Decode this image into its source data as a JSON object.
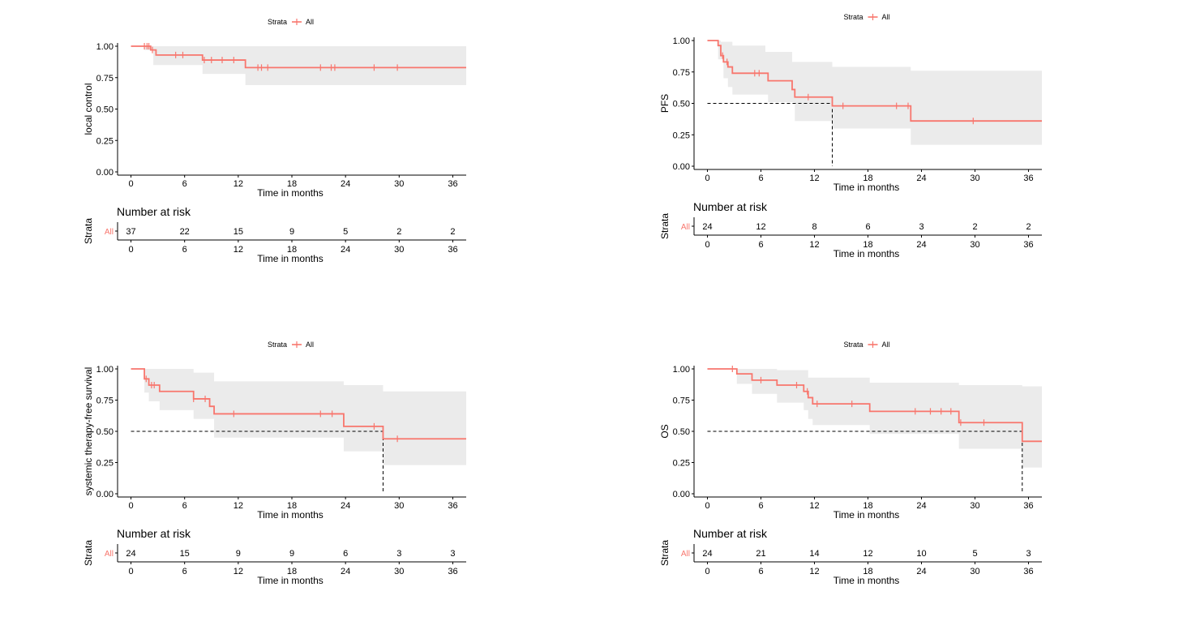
{
  "chart_data": [
    {
      "type": "line",
      "legend": {
        "title": "Strata",
        "entries": [
          "All"
        ],
        "placement": "top-center"
      },
      "ylabel": "local control",
      "xlabel": "Time in months",
      "xticks": [
        0,
        6,
        12,
        18,
        24,
        30,
        36
      ],
      "yticks": [
        "0.00",
        "0.25",
        "0.50",
        "0.75",
        "1.00"
      ],
      "xlim": [
        -1.5,
        37.5
      ],
      "ylim": [
        0,
        1
      ],
      "median": null,
      "series": [
        {
          "name": "All",
          "color": "#F8766D",
          "steps": [
            [
              0,
              1
            ],
            [
              2.2,
              0.97
            ],
            [
              2.8,
              0.93
            ],
            [
              8,
              0.89
            ],
            [
              12.8,
              0.83
            ],
            [
              37.5,
              0.83
            ]
          ],
          "ci_upper": [
            [
              0,
              1
            ],
            [
              2.2,
              1
            ],
            [
              37.5,
              1
            ]
          ],
          "ci_lower": [
            [
              0,
              1
            ],
            [
              1.5,
              0.97
            ],
            [
              2.5,
              0.85
            ],
            [
              8,
              0.78
            ],
            [
              12.8,
              0.69
            ],
            [
              37.5,
              0.69
            ]
          ],
          "censor_times": [
            1.5,
            1.8,
            2.0,
            2.4,
            5.0,
            5.8,
            8.2,
            9.0,
            10.2,
            11.5,
            14.2,
            14.6,
            15.3,
            21.2,
            22.4,
            22.8,
            27.2,
            29.8
          ]
        }
      ],
      "risk_table": {
        "title": "Number at risk",
        "ylabel": "Strata",
        "row_label": "All",
        "times": [
          0,
          6,
          12,
          18,
          24,
          30,
          36
        ],
        "values": [
          37,
          22,
          15,
          9,
          5,
          2,
          2
        ],
        "xlabel": "Time in months"
      }
    },
    {
      "type": "line",
      "legend": {
        "title": "Strata",
        "entries": [
          "All"
        ],
        "placement": "top-center"
      },
      "ylabel": "PFS",
      "xlabel": "Time in months",
      "xticks": [
        0,
        6,
        12,
        18,
        24,
        30,
        36
      ],
      "yticks": [
        "0.00",
        "0.25",
        "0.50",
        "0.75",
        "1.00"
      ],
      "xlim": [
        -1.5,
        37.5
      ],
      "ylim": [
        0,
        1
      ],
      "median": 14,
      "series": [
        {
          "name": "All",
          "color": "#F8766D",
          "steps": [
            [
              0,
              1
            ],
            [
              1.2,
              0.96
            ],
            [
              1.5,
              0.88
            ],
            [
              1.8,
              0.83
            ],
            [
              2.3,
              0.79
            ],
            [
              2.8,
              0.74
            ],
            [
              6.8,
              0.68
            ],
            [
              9.5,
              0.61
            ],
            [
              9.8,
              0.55
            ],
            [
              14,
              0.48
            ],
            [
              22.8,
              0.36
            ],
            [
              37.5,
              0.36
            ]
          ],
          "ci_upper": [
            [
              0,
              1
            ],
            [
              1.5,
              0.99
            ],
            [
              2.8,
              0.96
            ],
            [
              6.5,
              0.91
            ],
            [
              9.5,
              0.83
            ],
            [
              14,
              0.79
            ],
            [
              22.8,
              0.76
            ],
            [
              37.5,
              0.76
            ]
          ],
          "ci_lower": [
            [
              0,
              1
            ],
            [
              1.2,
              0.85
            ],
            [
              1.8,
              0.7
            ],
            [
              2.3,
              0.63
            ],
            [
              2.8,
              0.57
            ],
            [
              6.8,
              0.51
            ],
            [
              9.8,
              0.36
            ],
            [
              14,
              0.3
            ],
            [
              22.8,
              0.17
            ],
            [
              37.5,
              0.17
            ]
          ],
          "censor_times": [
            1.7,
            2.2,
            5.3,
            5.8,
            11.3,
            15.2,
            21.2,
            22.5,
            29.8
          ]
        }
      ],
      "risk_table": {
        "title": "Number at risk",
        "ylabel": "Strata",
        "row_label": "All",
        "times": [
          0,
          6,
          12,
          18,
          24,
          30,
          36
        ],
        "values": [
          24,
          12,
          8,
          6,
          3,
          2,
          2
        ],
        "xlabel": "Time in months"
      }
    },
    {
      "type": "line",
      "legend": {
        "title": "Strata",
        "entries": [
          "All"
        ],
        "placement": "top-center"
      },
      "ylabel": "systemic therapy-free survival",
      "xlabel": "Time in months",
      "xticks": [
        0,
        6,
        12,
        18,
        24,
        30,
        36
      ],
      "yticks": [
        "0.00",
        "0.25",
        "0.50",
        "0.75",
        "1.00"
      ],
      "xlim": [
        -1.5,
        37.5
      ],
      "ylim": [
        0,
        1
      ],
      "median": 28.2,
      "series": [
        {
          "name": "All",
          "color": "#F8766D",
          "steps": [
            [
              0,
              1
            ],
            [
              1.5,
              0.92
            ],
            [
              2.0,
              0.87
            ],
            [
              3.2,
              0.82
            ],
            [
              7.0,
              0.76
            ],
            [
              8.8,
              0.7
            ],
            [
              9.3,
              0.64
            ],
            [
              23.8,
              0.54
            ],
            [
              28.2,
              0.44
            ],
            [
              37.5,
              0.44
            ]
          ],
          "ci_upper": [
            [
              0,
              1
            ],
            [
              2.0,
              1
            ],
            [
              7.0,
              0.97
            ],
            [
              9.3,
              0.9
            ],
            [
              23.8,
              0.87
            ],
            [
              28.2,
              0.82
            ],
            [
              37.5,
              0.82
            ]
          ],
          "ci_lower": [
            [
              0,
              1
            ],
            [
              1.5,
              0.81
            ],
            [
              2.0,
              0.74
            ],
            [
              3.2,
              0.67
            ],
            [
              7.0,
              0.6
            ],
            [
              9.3,
              0.45
            ],
            [
              23.8,
              0.34
            ],
            [
              28.2,
              0.23
            ],
            [
              37.5,
              0.23
            ]
          ],
          "censor_times": [
            1.7,
            2.3,
            2.6,
            7.0,
            8.3,
            11.5,
            21.2,
            22.5,
            27.2,
            29.8
          ]
        }
      ],
      "risk_table": {
        "title": "Number at risk",
        "ylabel": "Strata",
        "row_label": "All",
        "times": [
          0,
          6,
          12,
          18,
          24,
          30,
          36
        ],
        "values": [
          24,
          15,
          9,
          9,
          6,
          3,
          3
        ],
        "xlabel": "Time in months"
      }
    },
    {
      "type": "line",
      "legend": {
        "title": "Strata",
        "entries": [
          "All"
        ],
        "placement": "top-center"
      },
      "ylabel": "OS",
      "xlabel": "Time in months",
      "xticks": [
        0,
        6,
        12,
        18,
        24,
        30,
        36
      ],
      "yticks": [
        "0.00",
        "0.25",
        "0.50",
        "0.75",
        "1.00"
      ],
      "xlim": [
        -1.5,
        37.5
      ],
      "ylim": [
        0,
        1
      ],
      "median": 35.3,
      "series": [
        {
          "name": "All",
          "color": "#F8766D",
          "steps": [
            [
              0,
              1
            ],
            [
              3.3,
              0.96
            ],
            [
              5.0,
              0.91
            ],
            [
              7.8,
              0.87
            ],
            [
              10.8,
              0.82
            ],
            [
              11.3,
              0.77
            ],
            [
              11.8,
              0.72
            ],
            [
              18.2,
              0.66
            ],
            [
              28.2,
              0.57
            ],
            [
              35.3,
              0.42
            ],
            [
              37.5,
              0.42
            ]
          ],
          "ci_upper": [
            [
              0,
              1
            ],
            [
              5.0,
              1
            ],
            [
              7.8,
              0.99
            ],
            [
              11.3,
              0.93
            ],
            [
              18.2,
              0.89
            ],
            [
              28.2,
              0.87
            ],
            [
              35.3,
              0.86
            ],
            [
              37.5,
              0.86
            ]
          ],
          "ci_lower": [
            [
              0,
              1
            ],
            [
              3.3,
              0.88
            ],
            [
              5.0,
              0.8
            ],
            [
              7.8,
              0.73
            ],
            [
              10.8,
              0.67
            ],
            [
              11.3,
              0.6
            ],
            [
              11.8,
              0.55
            ],
            [
              18.2,
              0.48
            ],
            [
              28.2,
              0.36
            ],
            [
              35.3,
              0.21
            ],
            [
              37.5,
              0.21
            ]
          ],
          "censor_times": [
            2.8,
            6.0,
            10.0,
            11.2,
            12.3,
            16.2,
            23.3,
            25.0,
            26.2,
            27.3,
            28.4,
            31.0
          ]
        }
      ],
      "risk_table": {
        "title": "Number at risk",
        "ylabel": "Strata",
        "row_label": "All",
        "times": [
          0,
          6,
          12,
          18,
          24,
          30,
          36
        ],
        "values": [
          24,
          21,
          14,
          12,
          10,
          5,
          3
        ],
        "xlabel": "Time in months"
      }
    }
  ]
}
